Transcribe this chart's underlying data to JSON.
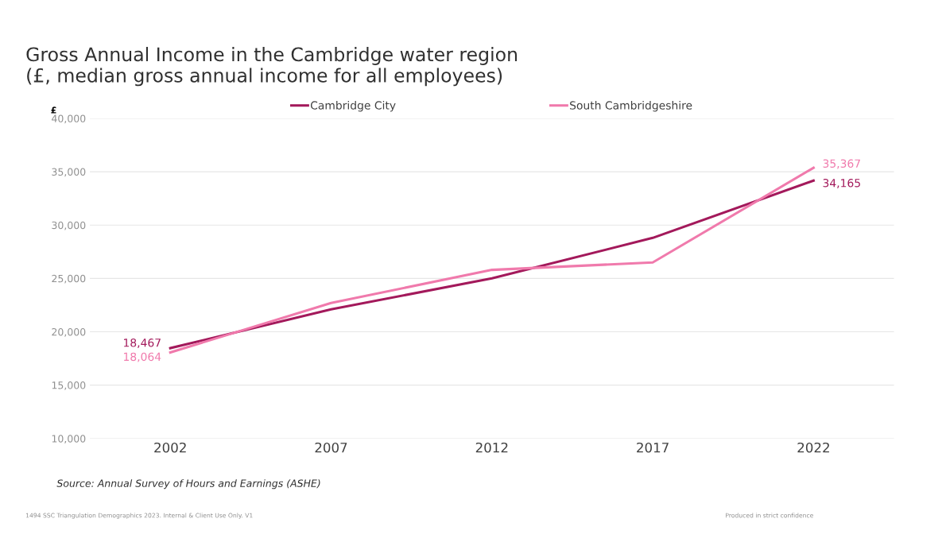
{
  "chart_data": {
    "type": "line",
    "title": "Gross Annual Income in the Cambridge water region\n(£, median gross annual income for all employees)",
    "ylabel": "£",
    "categories": [
      "2002",
      "2007",
      "2012",
      "2017",
      "2022"
    ],
    "series": [
      {
        "name": "Cambridge City",
        "color": "#a3195b",
        "values": [
          18467,
          22100,
          25000,
          28800,
          34165
        ],
        "value_labels": [
          "18,467",
          null,
          null,
          null,
          "34,165"
        ]
      },
      {
        "name": "South Cambridgeshire",
        "color": "#f07aac",
        "values": [
          18064,
          22700,
          25800,
          26500,
          35367
        ],
        "value_labels": [
          "18,064",
          null,
          null,
          null,
          "35,367"
        ]
      }
    ],
    "ylim": [
      10000,
      40000
    ],
    "yticks": [
      {
        "value": 10000,
        "label": "10,000"
      },
      {
        "value": 15000,
        "label": "15,000"
      },
      {
        "value": 20000,
        "label": "20,000"
      },
      {
        "value": 25000,
        "label": "25,000"
      },
      {
        "value": 30000,
        "label": "30,000"
      },
      {
        "value": 35000,
        "label": "35,000"
      },
      {
        "value": 40000,
        "label": "40,000"
      }
    ],
    "grid": "y",
    "legend": "top",
    "marker": "none",
    "line_style": "solid",
    "annotations": [
      "Source: Annual Survey of Hours and Earnings (ASHE)",
      "1494 SSC Triangulation Demographics 2023. Internal & Client Use Only. V1",
      "Produced in strict confidence"
    ]
  }
}
